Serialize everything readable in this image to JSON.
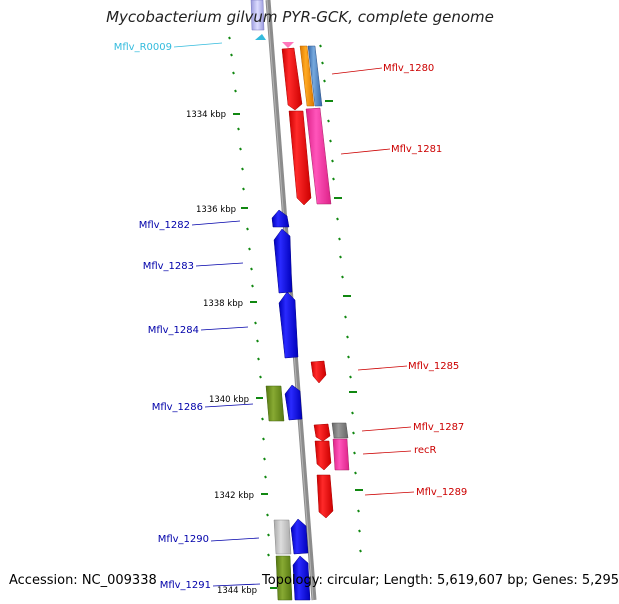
{
  "title": "Mycobacterium gilvum PYR-GCK, complete genome",
  "footer": {
    "accession": "Accession: NC_009338",
    "summary": "Topology: circular; Length: 5,619,607 bp; Genes: 5,295"
  },
  "colors": {
    "forward": "#ff0000",
    "reverse": "#0000ff",
    "label_forward": "#cc0000",
    "label_reverse": "#0000aa",
    "label_rna": "#33bbdd",
    "backbone": "#888888",
    "tick": "#118811",
    "magenta": "#ff33aa",
    "orange": "#ff9900",
    "steelblue": "#5588cc",
    "olive": "#669922",
    "grey": "#888888",
    "lightgrey": "#cccccc"
  },
  "scale_ticks": [
    {
      "label": "1334 kbp"
    },
    {
      "label": "1336 kbp"
    },
    {
      "label": "1338 kbp"
    },
    {
      "label": "1340 kbp"
    },
    {
      "label": "1342 kbp"
    },
    {
      "label": "1344 kbp"
    }
  ],
  "gene_labels": [
    {
      "text": "Mflv_R0009",
      "strand": "rna"
    },
    {
      "text": "Mflv_1280",
      "strand": "forward"
    },
    {
      "text": "Mflv_1281",
      "strand": "forward"
    },
    {
      "text": "Mflv_1282",
      "strand": "reverse"
    },
    {
      "text": "Mflv_1283",
      "strand": "reverse"
    },
    {
      "text": "Mflv_1284",
      "strand": "reverse"
    },
    {
      "text": "Mflv_1285",
      "strand": "forward"
    },
    {
      "text": "Mflv_1286",
      "strand": "reverse"
    },
    {
      "text": "Mflv_1287",
      "strand": "forward"
    },
    {
      "text": "recR",
      "strand": "forward"
    },
    {
      "text": "Mflv_1289",
      "strand": "forward"
    },
    {
      "text": "Mflv_1290",
      "strand": "reverse"
    },
    {
      "text": "Mflv_1291",
      "strand": "reverse"
    }
  ]
}
